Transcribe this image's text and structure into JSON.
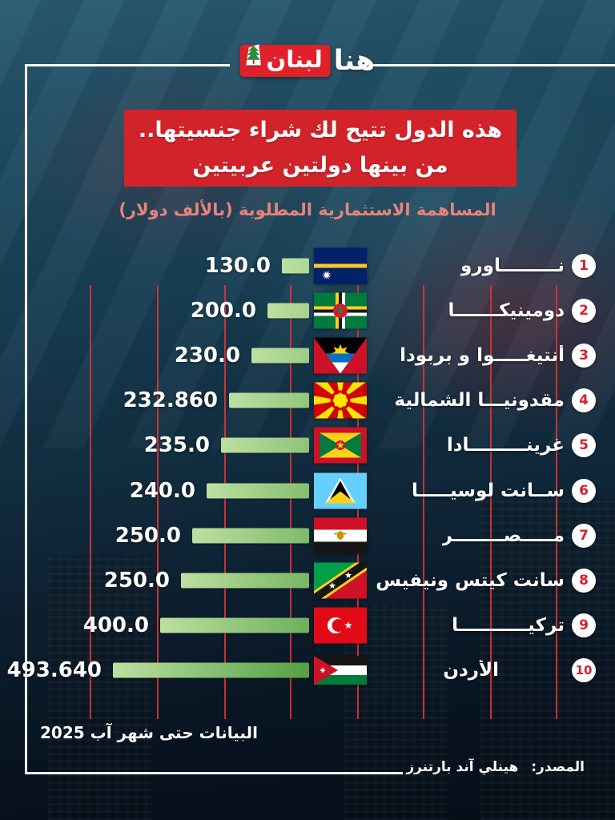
{
  "logo": {
    "prefix": "هنا",
    "brand": "لبنان"
  },
  "title": {
    "line1": "هذه الدول تتيح لك شراء جنسيتها..",
    "line2": "من بينها دولتين عربيتين"
  },
  "subtitle": "المساهمة الاستثمارية المطلوبة (بالألف دولار)",
  "footnote": "البيانات حتى شهر آب 2025",
  "source": {
    "label": "المصدر:",
    "value": "هينلي آند بارتنرز"
  },
  "colors": {
    "banner_red": "#d2232a",
    "subtitle_pink": "#e8837b",
    "bar_green_light": "#bde0a0",
    "bar_green_dark": "#4d9c40",
    "gridline_red": "#e03434",
    "badge_number_red": "#d6212b",
    "frame_white": "#ffffff"
  },
  "chart_data": {
    "type": "bar",
    "orientation": "horizontal_rtl",
    "title": "المساهمة الاستثمارية المطلوبة (بالألف دولار)",
    "unit": "ألف دولار",
    "grid": true,
    "rows": [
      {
        "rank": "1",
        "name": "نـــــــــاورو",
        "flag": "nauru-flag",
        "value": 130.0,
        "value_label": "130.0"
      },
      {
        "rank": "2",
        "name": "دومينيكـــــــا",
        "flag": "dominica-flag",
        "value": 200.0,
        "value_label": "200.0"
      },
      {
        "rank": "3",
        "name": "أنتيغـــــوا و بربودا",
        "flag": "antigua-flag",
        "value": 230.0,
        "value_label": "230.0"
      },
      {
        "rank": "4",
        "name": "مقدونيـــا الشمالية",
        "flag": "macedonia-flag",
        "value": 232.86,
        "value_label": "232.860"
      },
      {
        "rank": "5",
        "name": "غرينـــــــــادا",
        "flag": "grenada-flag",
        "value": 235.0,
        "value_label": "235.0"
      },
      {
        "rank": "6",
        "name": "ســانت لوسيـــــا",
        "flag": "saint-lucia-flag",
        "value": 240.0,
        "value_label": "240.0"
      },
      {
        "rank": "7",
        "name": "مـــــصــــــــر",
        "flag": "egypt-flag",
        "value": 250.0,
        "value_label": "250.0"
      },
      {
        "rank": "8",
        "name": "سانت كيتس ونيفيس",
        "flag": "saint-kitts-flag",
        "value": 250.0,
        "value_label": "250.0"
      },
      {
        "rank": "9",
        "name": "تركيـــــــــــا",
        "flag": "turkey-flag",
        "value": 400.0,
        "value_label": "400.0"
      },
      {
        "rank": "10",
        "name": "الأردن",
        "flag": "jordan-flag",
        "value": 493.64,
        "value_label": "493.640"
      }
    ]
  }
}
